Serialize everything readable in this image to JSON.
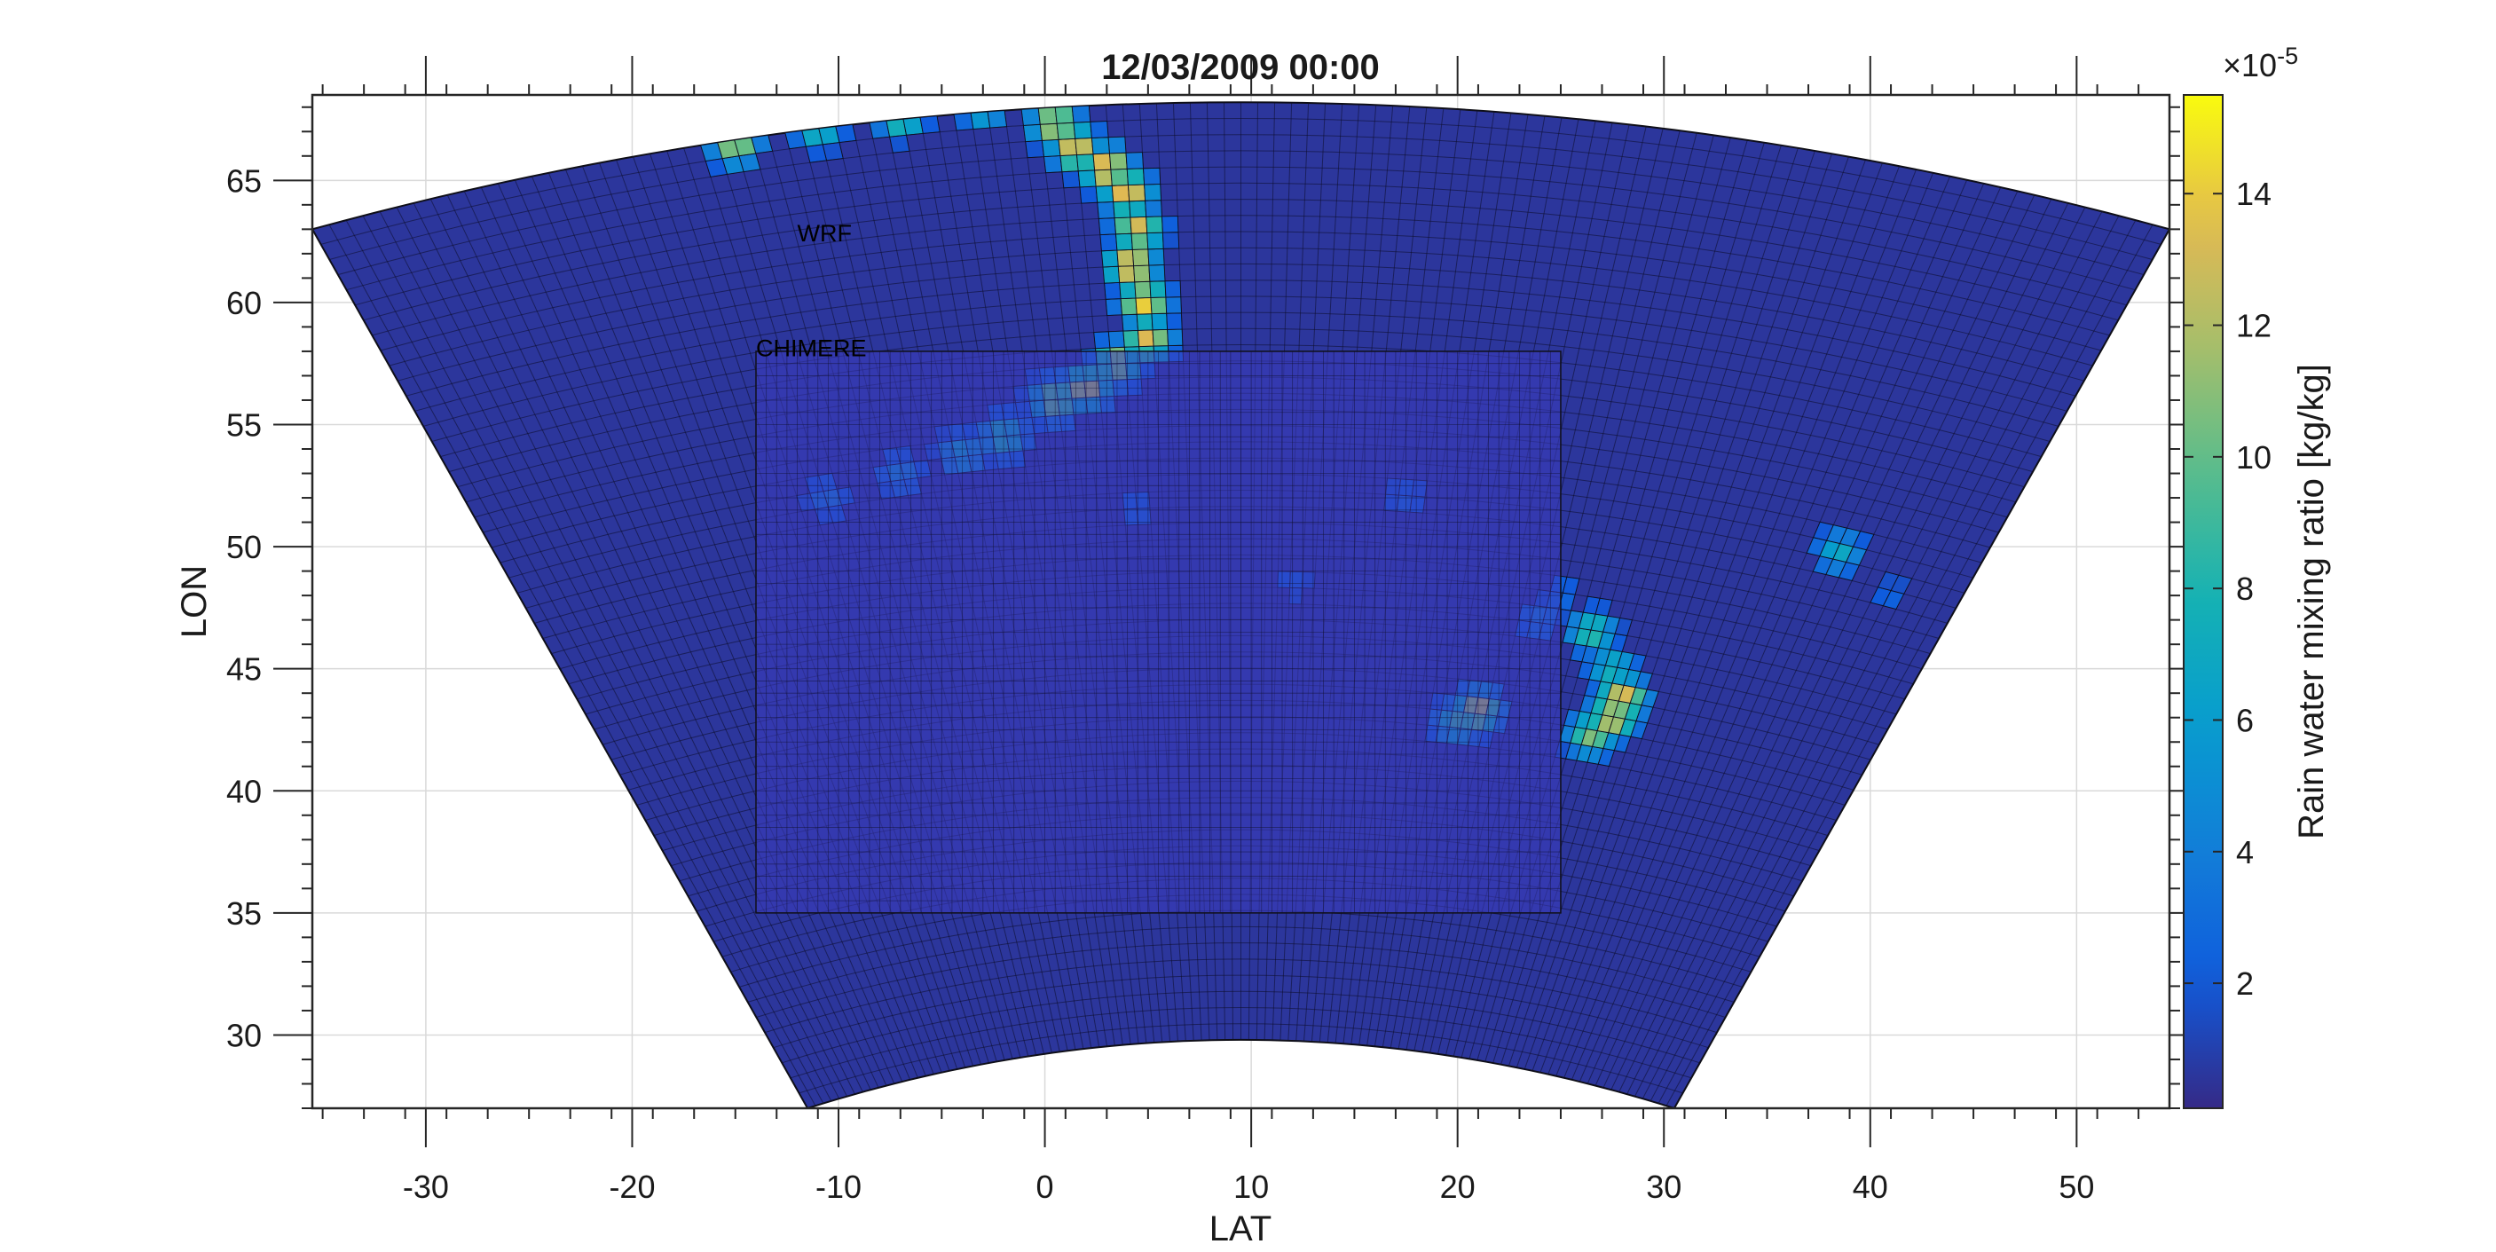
{
  "chart_data": {
    "type": "heatmap",
    "title": "12/03/2009 00:00",
    "xlabel": "LAT",
    "ylabel": "LON",
    "xlim": [
      -35.5,
      54.5
    ],
    "ylim": [
      27,
      68.5
    ],
    "xticks": [
      -30,
      -20,
      -10,
      0,
      10,
      20,
      30,
      40,
      50
    ],
    "yticks": [
      30,
      35,
      40,
      45,
      50,
      55,
      60,
      65
    ],
    "grid": true,
    "colormap": "parula",
    "colorbar": {
      "label": "Rain water mixing ratio [kg/kg]",
      "exponent_label": "×10",
      "exponent_power": "-5",
      "range": [
        0.1,
        15.5
      ],
      "ticks": [
        2,
        4,
        6,
        8,
        10,
        12,
        14
      ]
    },
    "domains": [
      {
        "name": "WRF",
        "shape": "conic",
        "corner_sw": [
          -11.5,
          27
        ],
        "corner_se": [
          30.5,
          27
        ],
        "corner_nw": [
          -35.5,
          63
        ],
        "corner_ne": [
          54.5,
          63
        ],
        "center_lon": 9.5
      },
      {
        "name": "CHIMERE",
        "shape": "rectangle",
        "lat_range": [
          -14,
          25
        ],
        "lon_range": [
          35,
          58
        ]
      }
    ],
    "background_value": 0.6,
    "rain_features": [
      {
        "lat": 0.5,
        "lon": 67.3,
        "value": 13.0
      },
      {
        "lat": 1.5,
        "lon": 66.3,
        "value": 14.0
      },
      {
        "lat": 3.0,
        "lon": 65.5,
        "value": 15.0
      },
      {
        "lat": 4.0,
        "lon": 64.5,
        "value": 14.5
      },
      {
        "lat": 4.5,
        "lon": 63.0,
        "value": 13.5
      },
      {
        "lat": 4.2,
        "lon": 61.5,
        "value": 15.0
      },
      {
        "lat": 4.8,
        "lon": 60.0,
        "value": 14.5
      },
      {
        "lat": 5.0,
        "lon": 58.5,
        "value": 13.5
      },
      {
        "lat": 3.5,
        "lon": 57.5,
        "value": 12.0
      },
      {
        "lat": 2.0,
        "lon": 56.5,
        "value": 13.0
      },
      {
        "lat": 0.5,
        "lon": 56.0,
        "value": 11.5
      },
      {
        "lat": -2.0,
        "lon": 54.5,
        "value": 9.0
      },
      {
        "lat": -4.0,
        "lon": 53.8,
        "value": 7.0
      },
      {
        "lat": -7.0,
        "lon": 53.0,
        "value": 5.0
      },
      {
        "lat": -10.5,
        "lon": 52.0,
        "value": 4.0
      },
      {
        "lat": -15.0,
        "lon": 66.5,
        "value": 12.0
      },
      {
        "lat": -11.0,
        "lon": 67.2,
        "value": 9.0
      },
      {
        "lat": -7.0,
        "lon": 67.7,
        "value": 11.0
      },
      {
        "lat": -3.0,
        "lon": 68.0,
        "value": 8.0
      },
      {
        "lat": 26.5,
        "lon": 46.5,
        "value": 9.0
      },
      {
        "lat": 27.5,
        "lon": 45.0,
        "value": 8.0
      },
      {
        "lat": 28.0,
        "lon": 43.8,
        "value": 14.0
      },
      {
        "lat": 27.5,
        "lon": 43.0,
        "value": 13.5
      },
      {
        "lat": 26.5,
        "lon": 42.3,
        "value": 11.0
      },
      {
        "lat": 21.0,
        "lon": 43.3,
        "value": 13.0
      },
      {
        "lat": 20.0,
        "lon": 42.8,
        "value": 9.0
      },
      {
        "lat": 24.0,
        "lon": 47.0,
        "value": 4.0
      },
      {
        "lat": 38.5,
        "lon": 49.8,
        "value": 7.0
      },
      {
        "lat": 17.5,
        "lon": 52.0,
        "value": 3.0
      },
      {
        "lat": 4.5,
        "lon": 51.5,
        "value": 3.0
      },
      {
        "lat": 12.0,
        "lon": 48.5,
        "value": 2.5
      },
      {
        "lat": 25.0,
        "lon": 48.0,
        "value": 3.0
      },
      {
        "lat": 41.0,
        "lon": 48.0,
        "value": 2.5
      }
    ]
  }
}
